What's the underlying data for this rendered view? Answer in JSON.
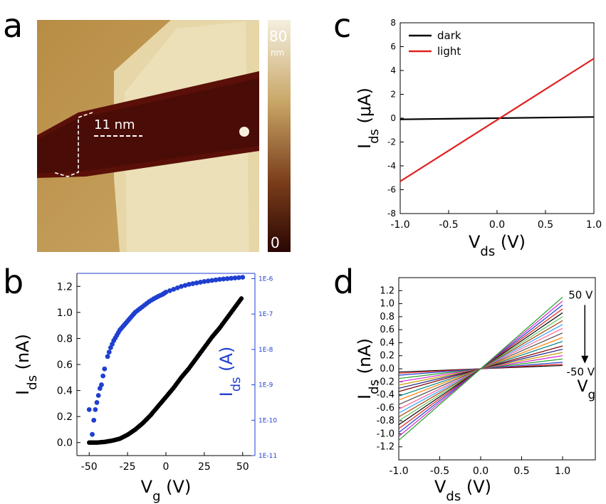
{
  "panels": {
    "a": {
      "letter": "a",
      "scale_label": "11 nm",
      "colorbar_top": "80",
      "colorbar_unit": "nm",
      "colorbar_bottom": "0",
      "colors": {
        "high": "#f2ead6",
        "mid": "#b8914a",
        "low": "#3a0b05",
        "flake": "#5a1008",
        "substrate": "#c9a768"
      }
    },
    "b": {
      "letter": "b"
    },
    "c": {
      "letter": "c"
    },
    "d": {
      "letter": "d"
    }
  },
  "chart_data": [
    {
      "panel": "b",
      "type": "scatter",
      "xlabel": "Vg (V)",
      "ylabel": "Ids (nA)",
      "y2label": "Ids (A)",
      "xlim": [
        -58,
        58
      ],
      "ylim": [
        -0.1,
        1.3
      ],
      "y2lim": [
        -11,
        -5.85
      ],
      "y2scale": "log",
      "xticks": [
        "-50",
        "-25",
        "0",
        "25",
        "50"
      ],
      "yticks": [
        "0.0",
        "0.2",
        "0.4",
        "0.6",
        "0.8",
        "1.0",
        "1.2"
      ],
      "y2ticks": [
        "1E-11",
        "1E-10",
        "1E-9",
        "1E-8",
        "1E-7",
        "1E-6"
      ],
      "series": [
        {
          "axis": "left",
          "color": "#000000",
          "x": [
            -50,
            -45,
            -40,
            -35,
            -30,
            -25,
            -20,
            -15,
            -10,
            -5,
            0,
            5,
            10,
            15,
            20,
            25,
            30,
            35,
            40,
            45,
            50
          ],
          "y": [
            0.0,
            0.0,
            0.005,
            0.015,
            0.03,
            0.06,
            0.1,
            0.15,
            0.21,
            0.28,
            0.35,
            0.42,
            0.5,
            0.57,
            0.65,
            0.73,
            0.81,
            0.88,
            0.96,
            1.04,
            1.12
          ]
        },
        {
          "axis": "right",
          "color": "#1f3fd0",
          "x": [
            -50,
            -48,
            -47,
            -46,
            -45,
            -44,
            -43,
            -42,
            -41,
            -40,
            -38,
            -36,
            -34,
            -32,
            -30,
            -28,
            -26,
            -24,
            -22,
            -20,
            -17,
            -14,
            -11,
            -8,
            -5,
            -2,
            0,
            5,
            10,
            15,
            20,
            25,
            30,
            35,
            40,
            45,
            50
          ],
          "y": [
            -9.7,
            -10.4,
            -10.0,
            -9.7,
            -9.5,
            -9.3,
            -9.1,
            -9.0,
            -8.75,
            -8.55,
            -8.2,
            -7.95,
            -7.75,
            -7.6,
            -7.45,
            -7.35,
            -7.25,
            -7.15,
            -7.05,
            -6.95,
            -6.85,
            -6.75,
            -6.65,
            -6.57,
            -6.5,
            -6.44,
            -6.38,
            -6.3,
            -6.22,
            -6.16,
            -6.12,
            -6.08,
            -6.05,
            -6.02,
            -6.0,
            -5.98,
            -5.96
          ]
        }
      ]
    },
    {
      "panel": "c",
      "type": "line",
      "xlabel": "Vds (V)",
      "ylabel": "Ids (μA)",
      "xlim": [
        -1.0,
        1.0
      ],
      "ylim": [
        -8,
        8
      ],
      "xticks": [
        "-1.0",
        "-0.5",
        "0.0",
        "0.5",
        "1.0"
      ],
      "yticks": [
        "-8",
        "-6",
        "-4",
        "-2",
        "0",
        "2",
        "4",
        "6",
        "8"
      ],
      "legend": "top-left",
      "series": [
        {
          "name": "dark",
          "color": "#000000",
          "x": [
            -1.0,
            1.0
          ],
          "y": [
            -0.1,
            0.1
          ]
        },
        {
          "name": "light",
          "color": "#e02020",
          "x": [
            -1.0,
            1.0
          ],
          "y": [
            -5.3,
            5.0
          ]
        }
      ]
    },
    {
      "panel": "d",
      "type": "line",
      "xlabel": "Vds (V)",
      "ylabel": "Ids (nA)",
      "xlim": [
        -1.0,
        1.4
      ],
      "ylim": [
        -1.4,
        1.4
      ],
      "xticks": [
        "-1.0",
        "-0.5",
        "0.0",
        "0.5",
        "1.0"
      ],
      "yticks": [
        "-1.2",
        "-1.0",
        "-0.8",
        "-0.6",
        "-0.4",
        "-0.2",
        "0.0",
        "0.2",
        "0.4",
        "0.6",
        "0.8",
        "1.0",
        "1.2"
      ],
      "annotations": {
        "top": "50 V",
        "bottom": "-50 V",
        "label": "Vg"
      },
      "colors": [
        "#000000",
        "#e02020",
        "#1f3fd0",
        "#20a020",
        "#d020d0",
        "#c8a000",
        "#202080",
        "#800000",
        "#008080",
        "#ff8000",
        "#505050",
        "#ff60a0",
        "#40a0ff",
        "#a04000",
        "#60c060",
        "#000000",
        "#e02020",
        "#1f3fd0",
        "#d020d0",
        "#20a020"
      ],
      "slopes": [
        0.05,
        0.07,
        0.1,
        0.15,
        0.2,
        0.25,
        0.3,
        0.35,
        0.42,
        0.48,
        0.55,
        0.62,
        0.68,
        0.74,
        0.8,
        0.86,
        0.92,
        0.98,
        1.04,
        1.1
      ]
    }
  ]
}
